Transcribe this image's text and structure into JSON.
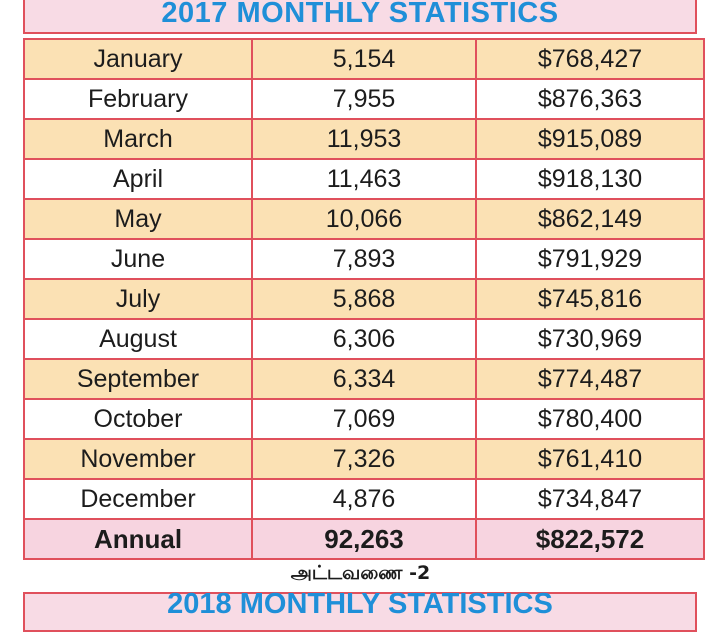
{
  "title": "2017 MONTHLY STATISTICS",
  "rows": [
    {
      "month": "January",
      "count": "5,154",
      "amount": "$768,427"
    },
    {
      "month": "February",
      "count": "7,955",
      "amount": "$876,363"
    },
    {
      "month": "March",
      "count": "11,953",
      "amount": "$915,089"
    },
    {
      "month": "April",
      "count": "11,463",
      "amount": "$918,130"
    },
    {
      "month": "May",
      "count": "10,066",
      "amount": "$862,149"
    },
    {
      "month": "June",
      "count": "7,893",
      "amount": "$791,929"
    },
    {
      "month": "July",
      "count": "5,868",
      "amount": "$745,816"
    },
    {
      "month": "August",
      "count": "6,306",
      "amount": "$730,969"
    },
    {
      "month": "September",
      "count": "6,334",
      "amount": "$774,487"
    },
    {
      "month": "October",
      "count": "7,069",
      "amount": "$780,400"
    },
    {
      "month": "November",
      "count": "7,326",
      "amount": "$761,410"
    },
    {
      "month": "December",
      "count": "4,876",
      "amount": "$734,847"
    }
  ],
  "annual": {
    "label": "Annual",
    "count": "92,263",
    "amount": "$822,572"
  },
  "caption": "அட்டவணை -2",
  "next_title": "2018 MONTHLY STATISTICS",
  "colors": {
    "border": "#e0505c",
    "title_text": "#1f8fd8",
    "title_bg": "#f8dbe5",
    "row_shade": "#fbe1b4",
    "annual_bg": "#f7d4e0"
  }
}
